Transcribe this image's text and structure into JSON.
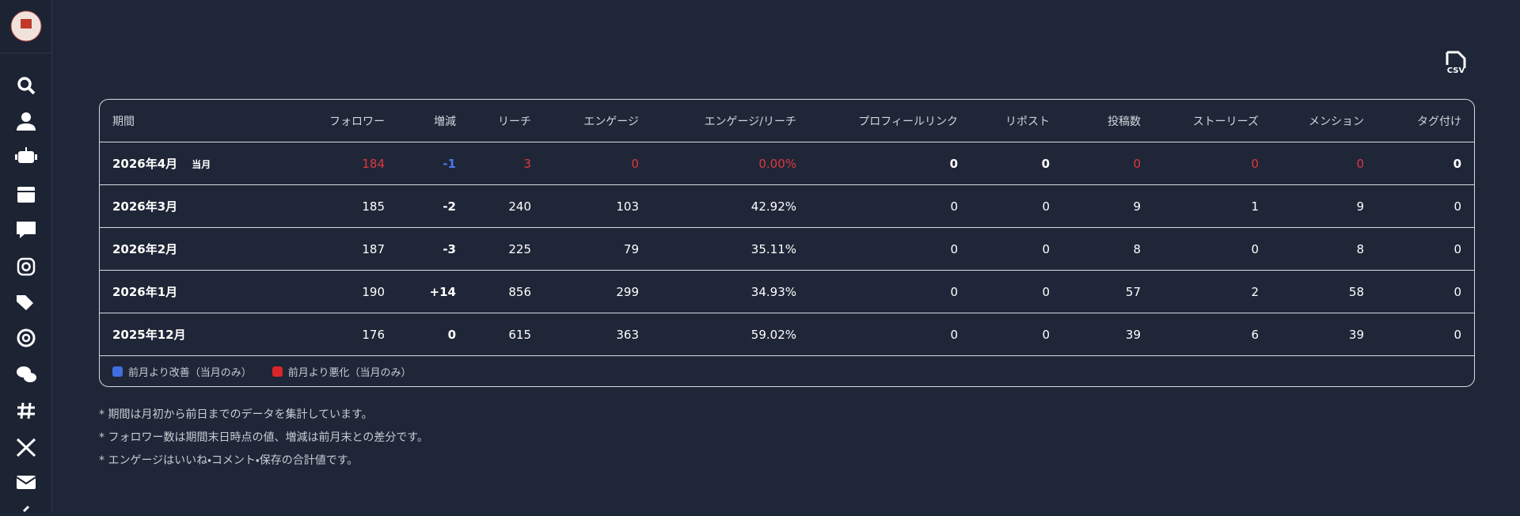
{
  "csv_button": "CSV",
  "table": {
    "headers": [
      "期間",
      "フォロワー",
      "増減",
      "リーチ",
      "エンゲージ",
      "エンゲージ/リーチ",
      "プロフィールリンク",
      "リポスト",
      "投稿数",
      "ストーリーズ",
      "メンション",
      "タグ付け"
    ],
    "rows": [
      {
        "period": "2026年4月",
        "badge": "当月",
        "cells": [
          "184",
          "-1",
          "3",
          "0",
          "0.00%",
          "0",
          "0",
          "0",
          "0",
          "0",
          "0"
        ],
        "colors": [
          "#e0383e",
          "#4a78e8",
          "#e0383e",
          "#e0383e",
          "#e0383e",
          null,
          null,
          "#e0383e",
          "#e0383e",
          "#e0383e",
          null
        ]
      },
      {
        "period": "2026年3月",
        "cells": [
          "185",
          "-2",
          "240",
          "103",
          "42.92%",
          "0",
          "0",
          "9",
          "1",
          "9",
          "0"
        ]
      },
      {
        "period": "2026年2月",
        "cells": [
          "187",
          "-3",
          "225",
          "79",
          "35.11%",
          "0",
          "0",
          "8",
          "0",
          "8",
          "0"
        ]
      },
      {
        "period": "2026年1月",
        "cells": [
          "190",
          "+14",
          "856",
          "299",
          "34.93%",
          "0",
          "0",
          "57",
          "2",
          "58",
          "0"
        ]
      },
      {
        "period": "2025年12月",
        "cells": [
          "176",
          "0",
          "615",
          "363",
          "59.02%",
          "0",
          "0",
          "39",
          "6",
          "39",
          "0"
        ]
      }
    ],
    "legend": [
      {
        "label": "前月より改善（当月のみ）",
        "color": "#3f6fe0"
      },
      {
        "label": "前月より悪化（当月のみ）",
        "color": "#d8262b"
      }
    ]
  },
  "notes": [
    "* 期間は月初から前日までのデータを集計しています。",
    "* フォロワー数は期間末日時点の値、増減は前月末との差分です。",
    "* エンゲージはいいね・コメント・保存の合計値です。"
  ]
}
